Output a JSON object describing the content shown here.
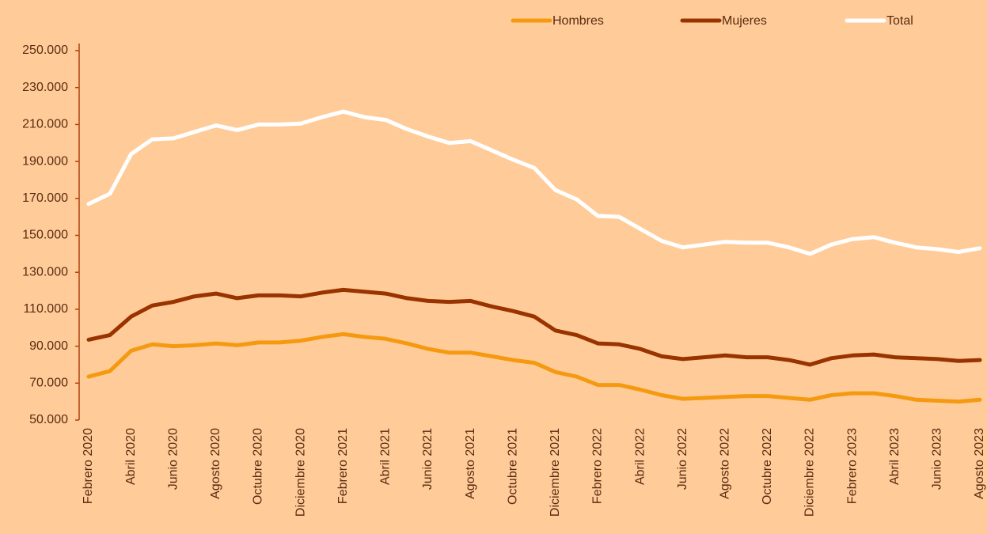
{
  "chart_data": {
    "type": "line",
    "categories": [
      "Febrero 2020",
      null,
      "Abril 2020",
      null,
      "Junio 2020",
      null,
      "Agosto 2020",
      null,
      "Octubre 2020",
      null,
      "Diciembre 2020",
      null,
      "Febrero 2021",
      null,
      "Abril 2021",
      null,
      "Junio 2021",
      null,
      "Agosto 2021",
      null,
      "Octubre 2021",
      null,
      "Diciembre 2021",
      null,
      "Febrero 2022",
      null,
      "Abril 2022",
      null,
      "Junio 2022",
      null,
      "Agosto 2022",
      null,
      "Octubre 2022",
      null,
      "Diciembre 2022",
      null,
      "Febrero 2023",
      null,
      "Abril 2023",
      null,
      "Junio 2023",
      null,
      "Agosto 2023"
    ],
    "series": [
      {
        "name": "Hombres",
        "color": "#f59a10",
        "values": [
          73500,
          76500,
          87500,
          91000,
          90000,
          90500,
          91500,
          90500,
          92000,
          92000,
          93000,
          95000,
          96500,
          95000,
          94000,
          91500,
          88500,
          86500,
          86500,
          84500,
          82500,
          81000,
          76000,
          73500,
          69000,
          69000,
          66500,
          63500,
          61500,
          62000,
          62500,
          63000,
          63000,
          62000,
          61000,
          63500,
          64500,
          64500,
          63000,
          61000,
          60500,
          60000,
          61000
        ]
      },
      {
        "name": "Mujeres",
        "color": "#993300",
        "values": [
          93500,
          96000,
          106000,
          112000,
          114000,
          117000,
          118500,
          116000,
          117500,
          117500,
          117000,
          119000,
          120500,
          119500,
          118500,
          116000,
          114500,
          114000,
          114500,
          111500,
          109000,
          106000,
          98500,
          96000,
          91500,
          91000,
          88500,
          84500,
          83000,
          84000,
          85000,
          84000,
          84000,
          82500,
          80000,
          83500,
          85000,
          85500,
          84000,
          83500,
          83000,
          82000,
          82500
        ]
      },
      {
        "name": "Total",
        "color": "#ffffff",
        "values": [
          167000,
          172500,
          194000,
          202000,
          202500,
          206000,
          209500,
          207000,
          210000,
          210000,
          210500,
          214000,
          217000,
          214000,
          212500,
          207500,
          203500,
          200000,
          201000,
          196000,
          191000,
          186500,
          174500,
          169500,
          160500,
          160000,
          153500,
          147000,
          143500,
          145000,
          146500,
          146000,
          146000,
          143500,
          140000,
          145000,
          148000,
          149000,
          146000,
          143500,
          142500,
          141000,
          143000
        ]
      }
    ],
    "ylim": [
      50000,
      250000
    ],
    "yticks": [
      {
        "value": 50000,
        "label": "50.000"
      },
      {
        "value": 70000,
        "label": "70.000"
      },
      {
        "value": 90000,
        "label": "90.000"
      },
      {
        "value": 110000,
        "label": "110.000"
      },
      {
        "value": 130000,
        "label": "130.000"
      },
      {
        "value": 150000,
        "label": "150.000"
      },
      {
        "value": 170000,
        "label": "170.000"
      },
      {
        "value": 190000,
        "label": "190.000"
      },
      {
        "value": 210000,
        "label": "210.000"
      },
      {
        "value": 230000,
        "label": "230.000"
      },
      {
        "value": 250000,
        "label": "250.000"
      }
    ],
    "grid": false,
    "legend": "top"
  }
}
